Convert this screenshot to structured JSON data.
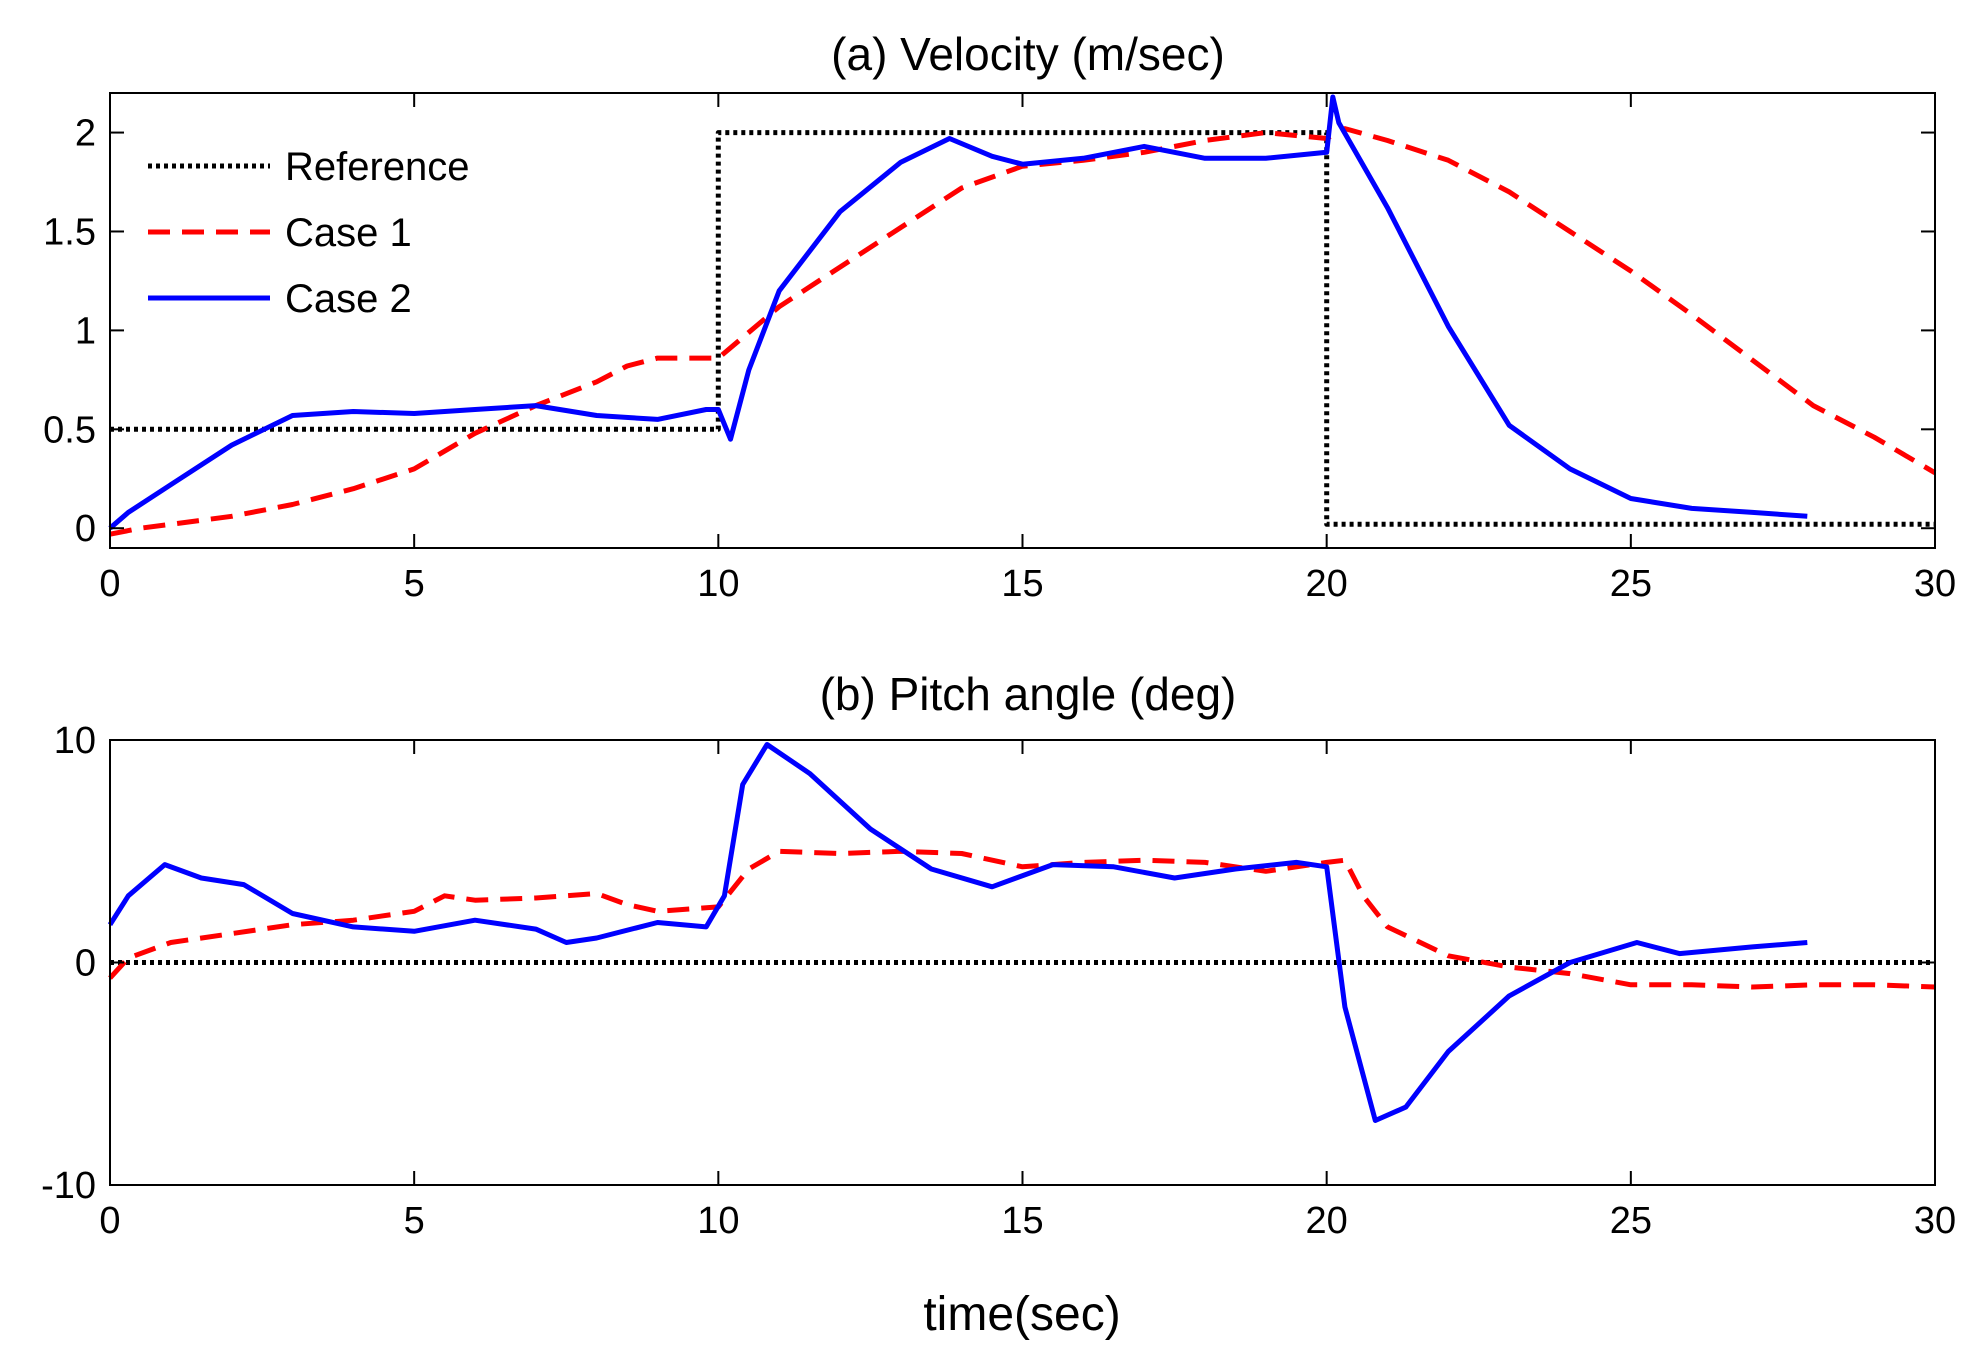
{
  "colors": {
    "reference": "#000000",
    "case1": "#ff0000",
    "case2": "#0000ff",
    "axes": "#000000",
    "background": "#ffffff"
  },
  "chart_data": [
    {
      "type": "line",
      "title": "(a) Velocity (m/sec)",
      "xlabel": "",
      "ylabel": "",
      "xlim": [
        0,
        30
      ],
      "ylim": [
        -0.1,
        2.2
      ],
      "xticks": [
        0,
        5,
        10,
        15,
        20,
        25,
        30
      ],
      "xtick_labels": [
        "0",
        "5",
        "10",
        "15",
        "20",
        "25",
        "30"
      ],
      "yticks": [
        0,
        0.5,
        1,
        1.5,
        2
      ],
      "ytick_labels": [
        "0",
        "0.5",
        "1",
        "1.5",
        "2"
      ],
      "grid": false,
      "legend_position": "top-left",
      "legend": [
        "Reference",
        "Case 1",
        "Case 2"
      ],
      "series": [
        {
          "name": "Reference",
          "style": "dotted",
          "color": "#000000",
          "x": [
            0,
            10,
            10,
            20,
            20,
            30
          ],
          "y": [
            0.5,
            0.5,
            2.0,
            2.0,
            0.02,
            0.02
          ]
        },
        {
          "name": "Case 1",
          "style": "dashed",
          "color": "#ff0000",
          "x": [
            0,
            0.5,
            1,
            2,
            3,
            4,
            5,
            6,
            7,
            8,
            8.5,
            9,
            9.5,
            10,
            11,
            12,
            13,
            14,
            15,
            16,
            17,
            18,
            19,
            20,
            20.3,
            21,
            22,
            23,
            24,
            25,
            26,
            27,
            28,
            29,
            30
          ],
          "y": [
            -0.03,
            0.0,
            0.02,
            0.06,
            0.12,
            0.2,
            0.3,
            0.48,
            0.62,
            0.74,
            0.82,
            0.86,
            0.86,
            0.86,
            1.12,
            1.32,
            1.52,
            1.72,
            1.83,
            1.86,
            1.9,
            1.96,
            2.0,
            1.97,
            2.02,
            1.96,
            1.86,
            1.7,
            1.5,
            1.3,
            1.08,
            0.85,
            0.62,
            0.46,
            0.28
          ]
        },
        {
          "name": "Case 2",
          "style": "solid",
          "color": "#0000ff",
          "x": [
            0,
            0.3,
            1,
            2,
            3,
            4,
            5,
            6,
            7,
            8,
            9,
            9.8,
            10,
            10.2,
            10.5,
            11,
            12,
            13,
            13.8,
            14.5,
            15,
            16,
            17,
            18,
            19,
            20,
            20.1,
            20.2,
            21,
            22,
            23,
            24,
            25,
            26,
            27,
            27.9
          ],
          "y": [
            0.0,
            0.08,
            0.22,
            0.42,
            0.57,
            0.59,
            0.58,
            0.6,
            0.62,
            0.57,
            0.55,
            0.6,
            0.6,
            0.45,
            0.8,
            1.2,
            1.6,
            1.85,
            1.97,
            1.88,
            1.84,
            1.87,
            1.93,
            1.87,
            1.87,
            1.9,
            2.18,
            2.05,
            1.62,
            1.02,
            0.52,
            0.3,
            0.15,
            0.1,
            0.08,
            0.06
          ]
        }
      ]
    },
    {
      "type": "line",
      "title": "(b) Pitch angle (deg)",
      "xlabel": "time(sec)",
      "ylabel": "",
      "xlim": [
        0,
        30
      ],
      "ylim": [
        -10,
        10
      ],
      "xticks": [
        0,
        5,
        10,
        15,
        20,
        25,
        30
      ],
      "xtick_labels": [
        "0",
        "5",
        "10",
        "15",
        "20",
        "25",
        "30"
      ],
      "yticks": [
        -10,
        0,
        10
      ],
      "ytick_labels": [
        "-10",
        "0",
        "10"
      ],
      "grid": false,
      "series": [
        {
          "name": "Reference",
          "style": "dotted",
          "color": "#000000",
          "x": [
            0,
            30
          ],
          "y": [
            0,
            0
          ]
        },
        {
          "name": "Case 1",
          "style": "dashed",
          "color": "#ff0000",
          "x": [
            0,
            0.3,
            1,
            2,
            3,
            4,
            5,
            5.5,
            6,
            7,
            8,
            8.5,
            9,
            10,
            10.5,
            11,
            12,
            13,
            14,
            15,
            16,
            17,
            18,
            19,
            20,
            20.3,
            20.6,
            21,
            22,
            23,
            24,
            25,
            26,
            27,
            28,
            29,
            30
          ],
          "y": [
            -0.7,
            0.2,
            0.9,
            1.3,
            1.7,
            1.9,
            2.3,
            3.0,
            2.8,
            2.9,
            3.1,
            2.6,
            2.3,
            2.5,
            4.2,
            5.0,
            4.9,
            5.0,
            4.9,
            4.3,
            4.5,
            4.6,
            4.5,
            4.1,
            4.5,
            4.6,
            3.0,
            1.6,
            0.3,
            -0.2,
            -0.5,
            -1.0,
            -1.0,
            -1.1,
            -1.0,
            -1.0,
            -1.1
          ]
        },
        {
          "name": "Case 2",
          "style": "solid",
          "color": "#0000ff",
          "x": [
            0,
            0.3,
            0.9,
            1.5,
            2.2,
            3,
            4,
            5,
            6,
            7,
            7.5,
            8,
            9,
            9.8,
            10.1,
            10.4,
            10.8,
            11.5,
            12.5,
            13.5,
            14.5,
            15.5,
            16.5,
            17.5,
            18.5,
            19.5,
            20.0,
            20.3,
            20.8,
            21.3,
            22,
            23,
            24,
            25.1,
            25.8,
            27,
            27.9
          ],
          "y": [
            1.7,
            3.0,
            4.4,
            3.8,
            3.5,
            2.2,
            1.6,
            1.4,
            1.9,
            1.5,
            0.9,
            1.1,
            1.8,
            1.6,
            3.0,
            8.0,
            9.8,
            8.5,
            6.0,
            4.2,
            3.4,
            4.4,
            4.3,
            3.8,
            4.2,
            4.5,
            4.3,
            -2.0,
            -7.1,
            -6.5,
            -4.0,
            -1.5,
            0.0,
            0.9,
            0.4,
            0.7,
            0.9
          ]
        }
      ]
    }
  ]
}
